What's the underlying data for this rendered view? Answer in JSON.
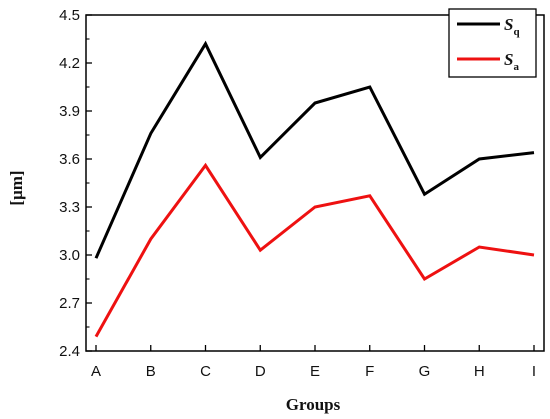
{
  "chart_data": {
    "type": "line",
    "categories": [
      "A",
      "B",
      "C",
      "D",
      "E",
      "F",
      "G",
      "H",
      "I"
    ],
    "series": [
      {
        "name_main": "S",
        "name_sub": "q",
        "color": "#000000",
        "values": [
          2.98,
          3.76,
          4.32,
          3.61,
          3.95,
          4.05,
          3.38,
          3.6,
          3.64
        ]
      },
      {
        "name_main": "S",
        "name_sub": "a",
        "color": "#ee1111",
        "values": [
          2.49,
          3.1,
          3.56,
          3.03,
          3.3,
          3.37,
          2.85,
          3.05,
          3.0
        ]
      }
    ],
    "y_ticks": [
      "2.4",
      "2.7",
      "3.0",
      "3.3",
      "3.6",
      "3.9",
      "4.2",
      "4.5"
    ],
    "ylim": [
      2.4,
      4.5
    ],
    "xlabel": "Groups",
    "ylabel": "[μm]",
    "legend_position": "top-right",
    "grid": false
  }
}
